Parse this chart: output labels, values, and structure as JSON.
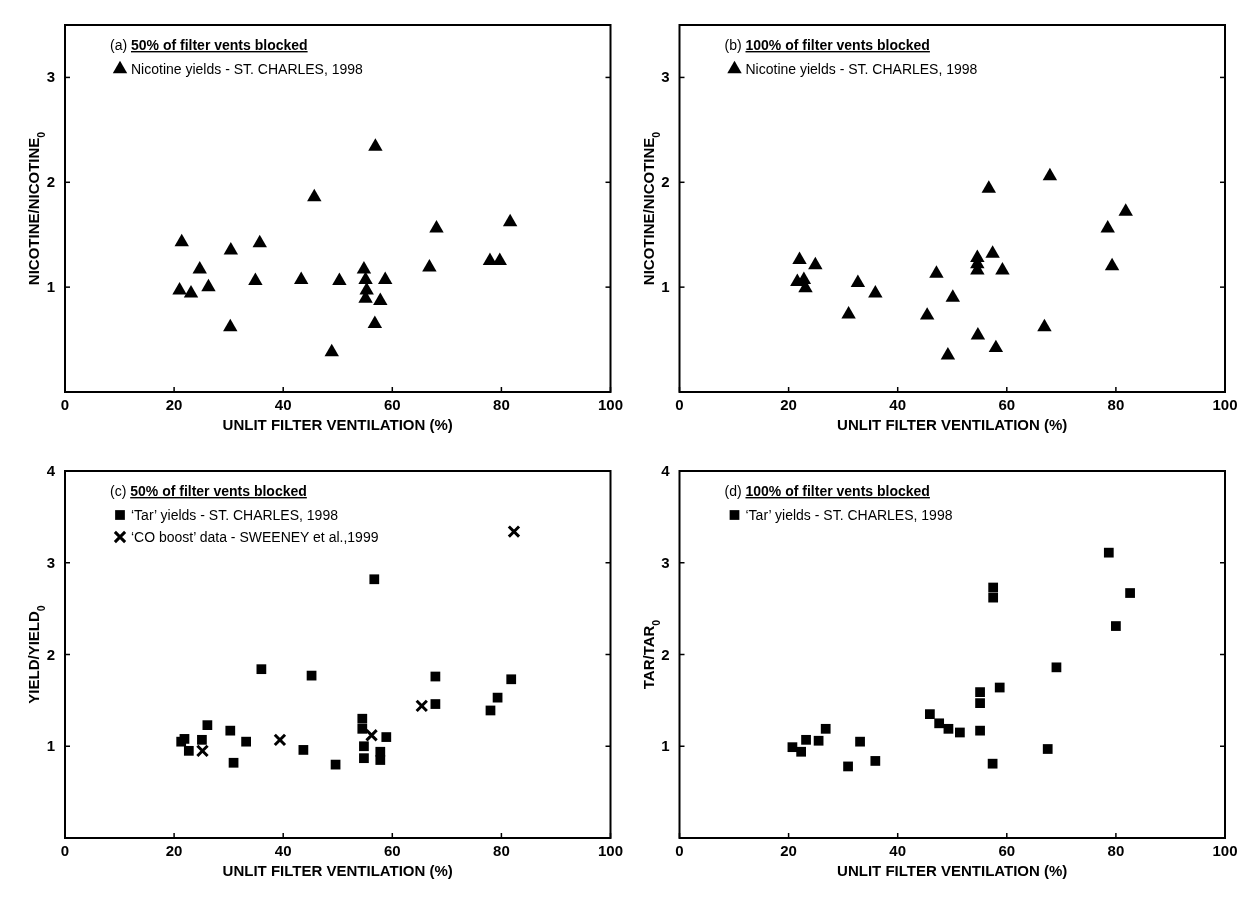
{
  "chart_data": [
    {
      "type": "scatter",
      "title": "(a) 50% of filter vents blocked",
      "xlabel": "UNLIT FILTER VENTILATION (%)",
      "ylabel": "NICOTINE/NICOTINE$_{0}$",
      "xlim": [
        0,
        100
      ],
      "xticks": [
        0,
        20,
        40,
        60,
        80,
        100
      ],
      "ylim": [
        0,
        3.5
      ],
      "yticks": [
        1,
        2,
        3
      ],
      "legend": "top left",
      "grid": false,
      "series": [
        {
          "name": "Nicotine yields - ST. CHARLES, 1998",
          "color": "#000000",
          "marker": "triangle",
          "x": [
            21.0,
            21.4,
            23.1,
            24.7,
            26.3,
            30.4,
            30.3,
            34.9,
            35.7,
            43.3,
            45.7,
            48.9,
            50.3,
            54.8,
            55.1,
            55.3,
            55.1,
            56.9,
            56.8,
            57.8,
            58.7,
            66.8,
            68.1,
            77.9,
            79.7,
            81.6
          ],
          "values": [
            0.97,
            1.43,
            0.94,
            1.17,
            1.0,
            1.35,
            0.62,
            1.06,
            1.42,
            1.07,
            1.86,
            0.38,
            1.06,
            1.17,
            1.07,
            0.97,
            0.89,
            2.34,
            0.65,
            0.87,
            1.07,
            1.19,
            1.56,
            1.25,
            1.25,
            1.62
          ]
        }
      ]
    },
    {
      "type": "scatter",
      "title": "(b) 100% of filter vents blocked",
      "xlabel": "UNLIT FILTER VENTILATION (%)",
      "ylabel": "NICOTINE/NICOTINE$_{0}$",
      "xlim": [
        0,
        100
      ],
      "xticks": [
        0,
        20,
        40,
        60,
        80,
        100
      ],
      "ylim": [
        0,
        3.5
      ],
      "yticks": [
        1,
        2,
        3
      ],
      "legend": "top left",
      "grid": false,
      "series": [
        {
          "name": "Nicotine yields - ST. CHARLES, 1998",
          "color": "#000000",
          "marker": "triangle",
          "x": [
            21.6,
            22.0,
            22.8,
            23.1,
            24.9,
            31.0,
            32.7,
            35.9,
            45.4,
            47.1,
            49.2,
            50.1,
            54.6,
            54.6,
            54.6,
            54.7,
            56.7,
            57.4,
            58.0,
            59.2,
            66.9,
            67.9,
            78.5,
            79.3,
            81.8
          ],
          "values": [
            1.05,
            1.26,
            1.07,
            0.99,
            1.21,
            0.74,
            1.04,
            0.94,
            0.73,
            1.13,
            0.35,
            0.9,
            1.28,
            1.22,
            1.16,
            0.54,
            1.94,
            1.32,
            0.42,
            1.16,
            0.62,
            2.06,
            1.56,
            1.2,
            1.72
          ]
        }
      ]
    },
    {
      "type": "scatter",
      "title": "(c) 50% of filter vents blocked",
      "xlabel": "UNLIT FILTER VENTILATION (%)",
      "ylabel": "YIELD/YIELD$_{0}$",
      "xlim": [
        0,
        100
      ],
      "xticks": [
        0,
        20,
        40,
        60,
        80,
        100
      ],
      "ylim": [
        0,
        4
      ],
      "yticks": [
        1,
        2,
        3,
        4
      ],
      "legend": "top left",
      "grid": false,
      "series": [
        {
          "name": "‘Tar’ yields - ST. CHARLES, 1998",
          "color": "#000000",
          "marker": "square",
          "x": [
            21.3,
            21.9,
            22.7,
            25.1,
            26.1,
            30.3,
            30.9,
            33.2,
            36.0,
            43.7,
            45.2,
            49.6,
            54.5,
            54.5,
            54.8,
            54.8,
            56.7,
            57.8,
            57.8,
            58.9,
            67.9,
            67.9,
            78.0,
            79.3,
            81.8
          ],
          "values": [
            1.05,
            1.08,
            0.95,
            1.07,
            1.23,
            1.17,
            0.82,
            1.05,
            1.84,
            0.96,
            1.77,
            0.8,
            1.3,
            1.19,
            1.0,
            0.87,
            2.82,
            0.94,
            0.85,
            1.1,
            1.76,
            1.46,
            1.39,
            1.53,
            1.73
          ]
        },
        {
          "name": "‘CO boost’ data - SWEENEY et al.,1999",
          "color": "#000000",
          "marker": "cross",
          "x": [
            25.2,
            39.4,
            56.2,
            65.4,
            82.3
          ],
          "values": [
            0.95,
            1.07,
            1.12,
            1.44,
            3.34
          ]
        }
      ]
    },
    {
      "type": "scatter",
      "title": "(d) 100% of filter vents blocked",
      "xlabel": "UNLIT FILTER VENTILATION (%)",
      "ylabel": "TAR/TAR$_{0}$",
      "xlim": [
        0,
        100
      ],
      "xticks": [
        0,
        20,
        40,
        60,
        80,
        100
      ],
      "ylim": [
        0,
        4
      ],
      "yticks": [
        1,
        2,
        3,
        4
      ],
      "legend": "top left",
      "grid": false,
      "series": [
        {
          "name": "‘Tar’ yields - ST. CHARLES, 1998",
          "color": "#000000",
          "marker": "square",
          "x": [
            20.7,
            22.3,
            23.2,
            25.5,
            26.8,
            30.9,
            33.1,
            35.9,
            45.9,
            47.6,
            49.3,
            51.4,
            55.1,
            55.1,
            55.1,
            57.5,
            57.5,
            57.4,
            58.7,
            67.5,
            69.1,
            78.7,
            80.0,
            82.6
          ],
          "values": [
            0.99,
            0.94,
            1.07,
            1.06,
            1.19,
            0.78,
            1.05,
            0.84,
            1.35,
            1.25,
            1.19,
            1.15,
            1.17,
            1.47,
            1.59,
            2.73,
            2.62,
            0.81,
            1.64,
            0.97,
            1.86,
            3.11,
            2.31,
            2.67
          ]
        }
      ]
    }
  ]
}
